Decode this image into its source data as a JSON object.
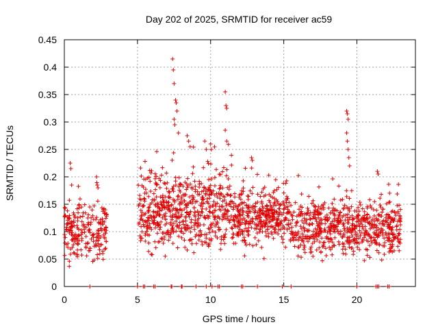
{
  "chart_data": {
    "type": "scatter",
    "title": "Day 202 of 2025, SRMTID for receiver ac59",
    "xlabel": "GPS time / hours",
    "ylabel": "SRMTID / TECUs",
    "xlim": [
      0,
      24
    ],
    "ylim": [
      0,
      0.45
    ],
    "xticks": [
      0,
      5,
      10,
      15,
      20
    ],
    "xtick_labels": [
      "0",
      "5",
      "10",
      "15",
      "20"
    ],
    "yticks": [
      0,
      0.05,
      0.1,
      0.15,
      0.2,
      0.25,
      0.3,
      0.35,
      0.4,
      0.45
    ],
    "ytick_labels": [
      "0",
      "0.05",
      "0.1",
      "0.15",
      "0.2",
      "0.25",
      "0.3",
      "0.35",
      "0.4",
      "0.45"
    ],
    "grid": true,
    "marker": "+",
    "color": "#e00000",
    "series": [
      {
        "name": "SRMTID",
        "clusters": [
          {
            "x_start": 0.0,
            "x_end": 2.9,
            "y_center": 0.1,
            "y_spread": 0.03,
            "count": 220
          },
          {
            "x_start": 5.0,
            "x_end": 11.5,
            "y_center": 0.135,
            "y_spread": 0.04,
            "count": 600
          },
          {
            "x_start": 11.5,
            "x_end": 15.4,
            "y_center": 0.125,
            "y_spread": 0.03,
            "count": 360
          },
          {
            "x_start": 15.4,
            "x_end": 23.0,
            "y_center": 0.105,
            "y_spread": 0.03,
            "count": 650
          }
        ],
        "peaks": [
          {
            "x": 0.4,
            "y": 0.225
          },
          {
            "x": 0.45,
            "y": 0.215
          },
          {
            "x": 0.5,
            "y": 0.185
          },
          {
            "x": 2.2,
            "y": 0.2
          },
          {
            "x": 2.25,
            "y": 0.185
          },
          {
            "x": 2.3,
            "y": 0.18
          },
          {
            "x": 7.4,
            "y": 0.415
          },
          {
            "x": 7.45,
            "y": 0.395
          },
          {
            "x": 7.5,
            "y": 0.37
          },
          {
            "x": 7.6,
            "y": 0.34
          },
          {
            "x": 7.65,
            "y": 0.335
          },
          {
            "x": 7.7,
            "y": 0.32
          },
          {
            "x": 7.5,
            "y": 0.305
          },
          {
            "x": 7.55,
            "y": 0.295
          },
          {
            "x": 7.8,
            "y": 0.28
          },
          {
            "x": 8.4,
            "y": 0.275
          },
          {
            "x": 8.5,
            "y": 0.265
          },
          {
            "x": 8.6,
            "y": 0.255
          },
          {
            "x": 9.6,
            "y": 0.265
          },
          {
            "x": 9.7,
            "y": 0.25
          },
          {
            "x": 10.0,
            "y": 0.26
          },
          {
            "x": 10.05,
            "y": 0.25
          },
          {
            "x": 11.0,
            "y": 0.355
          },
          {
            "x": 11.05,
            "y": 0.33
          },
          {
            "x": 11.1,
            "y": 0.325
          },
          {
            "x": 11.0,
            "y": 0.285
          },
          {
            "x": 11.1,
            "y": 0.265
          },
          {
            "x": 12.8,
            "y": 0.235
          },
          {
            "x": 12.85,
            "y": 0.23
          },
          {
            "x": 19.3,
            "y": 0.32
          },
          {
            "x": 19.35,
            "y": 0.315
          },
          {
            "x": 19.4,
            "y": 0.305
          },
          {
            "x": 19.3,
            "y": 0.28
          },
          {
            "x": 19.35,
            "y": 0.265
          },
          {
            "x": 19.4,
            "y": 0.25
          },
          {
            "x": 19.45,
            "y": 0.235
          },
          {
            "x": 19.5,
            "y": 0.22
          },
          {
            "x": 21.4,
            "y": 0.21
          },
          {
            "x": 21.45,
            "y": 0.205
          }
        ],
        "zeros": [
          1.75,
          5.0,
          5.4,
          5.5,
          6.1,
          6.2,
          7.3,
          7.35,
          8.0,
          8.05,
          9.0,
          9.7,
          10.1,
          10.5,
          10.6,
          12.1,
          12.2,
          13.2,
          14.9,
          15.5,
          20.0,
          21.3,
          21.4,
          21.5,
          22.1,
          22.2
        ]
      }
    ]
  }
}
